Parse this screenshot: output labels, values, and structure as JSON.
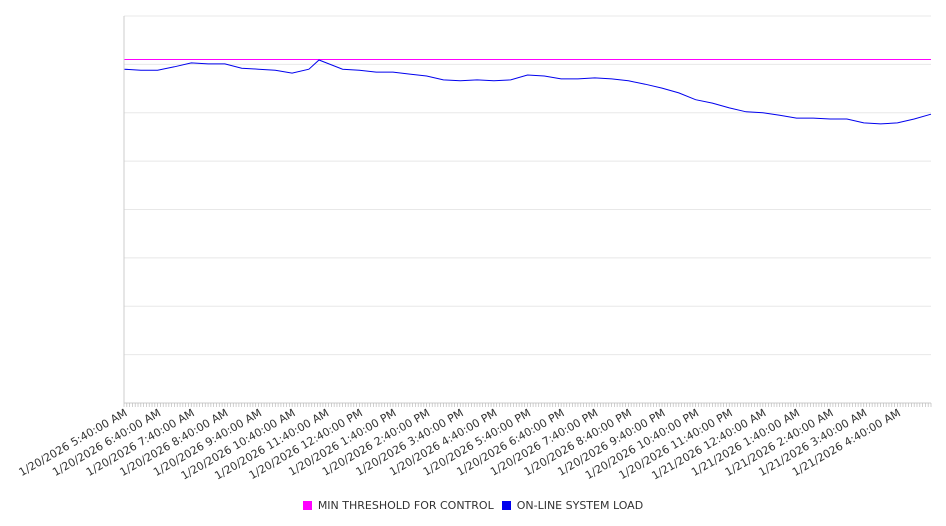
{
  "chart_data": {
    "type": "line",
    "title": "",
    "xlabel": "",
    "ylabel": "",
    "ylim": [
      0,
      80
    ],
    "y_gridlines": [
      0,
      10,
      20,
      30,
      40,
      50,
      60,
      70,
      80
    ],
    "y_units_note": "y axis unlabeled; values in relative units",
    "x_start_hour": 0,
    "x_end_hour": 24,
    "x_tick_labels": [
      "1/20/2026 5:40:00 AM",
      "1/20/2026 6:40:00 AM",
      "1/20/2026 7:40:00 AM",
      "1/20/2026 8:40:00 AM",
      "1/20/2026 9:40:00 AM",
      "1/20/2026 10:40:00 AM",
      "1/20/2026 11:40:00 AM",
      "1/20/2026 12:40:00 PM",
      "1/20/2026 1:40:00 PM",
      "1/20/2026 2:40:00 PM",
      "1/20/2026 3:40:00 PM",
      "1/20/2026 4:40:00 PM",
      "1/20/2026 5:40:00 PM",
      "1/20/2026 6:40:00 PM",
      "1/20/2026 7:40:00 PM",
      "1/20/2026 8:40:00 PM",
      "1/20/2026 9:40:00 PM",
      "1/20/2026 10:40:00 PM",
      "1/20/2026 11:40:00 PM",
      "1/21/2026 12:40:00 AM",
      "1/21/2026 1:40:00 AM",
      "1/21/2026 2:40:00 AM",
      "1/21/2026 3:40:00 AM",
      "1/21/2026 4:40:00 AM"
    ],
    "series": [
      {
        "name": "MIN THRESHOLD FOR CONTROL",
        "color": "#ff00ff",
        "x_hours": [
          0,
          24
        ],
        "values": [
          71,
          71
        ]
      },
      {
        "name": "ON-LINE SYSTEM LOAD",
        "color": "#0000ee",
        "x_hours": [
          0,
          0.5,
          1,
          1.5,
          2,
          2.5,
          3,
          3.5,
          4,
          4.5,
          5,
          5.5,
          5.8,
          6.5,
          7,
          7.5,
          8,
          8.5,
          9,
          9.5,
          10,
          10.5,
          11,
          11.5,
          12,
          12.5,
          13,
          13.5,
          14,
          14.5,
          15,
          15.5,
          16,
          16.5,
          17,
          17.5,
          18,
          18.5,
          19,
          19.5,
          20,
          20.5,
          21,
          21.5,
          22,
          22.5,
          23,
          23.5,
          24
        ],
        "values": [
          69.0,
          68.8,
          68.8,
          69.5,
          70.3,
          70.1,
          70.1,
          69.2,
          69.0,
          68.8,
          68.2,
          69.0,
          70.9,
          69.0,
          68.8,
          68.4,
          68.4,
          68.0,
          67.6,
          66.8,
          66.6,
          66.8,
          66.6,
          66.8,
          67.8,
          67.6,
          67.0,
          67.0,
          67.2,
          67.0,
          66.6,
          65.9,
          65.1,
          64.1,
          62.7,
          62.0,
          61.0,
          60.2,
          60.0,
          59.5,
          58.9,
          58.9,
          58.7,
          58.7,
          57.9,
          57.7,
          57.9,
          58.7,
          59.7
        ]
      }
    ],
    "legend_position": "bottom",
    "grid": true
  }
}
